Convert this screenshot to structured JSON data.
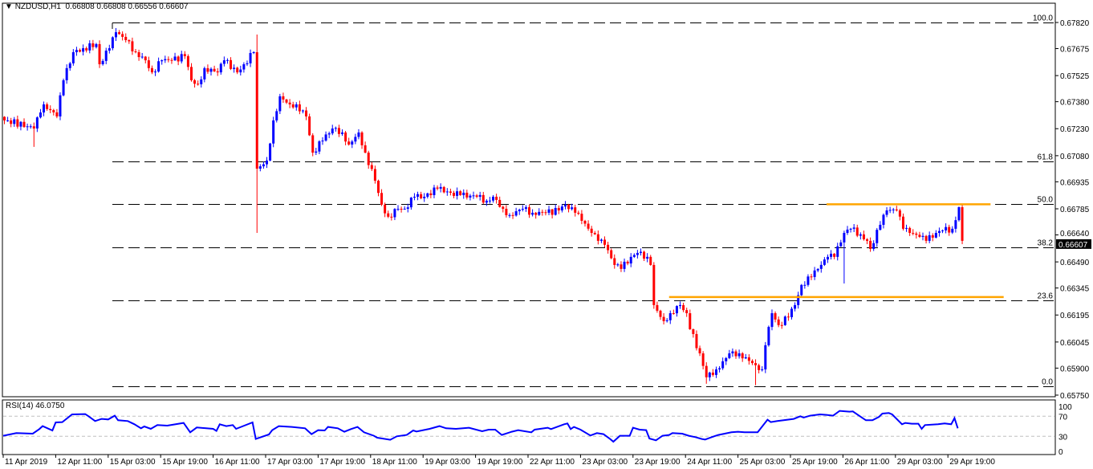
{
  "header": {
    "symbol": "NZDUSD,H1",
    "open": "0.66808",
    "high": "0.66808",
    "low": "0.66556",
    "close": "0.66607"
  },
  "rsi_label": {
    "name": "RSI(14)",
    "value": "46.0750"
  },
  "colors": {
    "bull": "#0000FF",
    "bear": "#FF0000",
    "rsi": "#0000FF",
    "fib": "#000000",
    "resistance": "#FFA500",
    "grid": "#C0C0C0"
  },
  "chart_data": {
    "type": "candlestick",
    "title": "NZDUSD,H1",
    "ylim": [
      0.6575,
      0.6782
    ],
    "y_ticks": [
      "0.67820",
      "0.67675",
      "0.67525",
      "0.67380",
      "0.67230",
      "0.67080",
      "0.66935",
      "0.66785",
      "0.66640",
      "0.66490",
      "0.66345",
      "0.66195",
      "0.66045",
      "0.65900",
      "0.65750"
    ],
    "current_price": "0.66607",
    "x_labels": [
      "11 Apr 2019",
      "12 Apr 11:00",
      "15 Apr 03:00",
      "15 Apr 19:00",
      "16 Apr 11:00",
      "17 Apr 03:00",
      "17 Apr 19:00",
      "18 Apr 11:00",
      "19 Apr 03:00",
      "19 Apr 19:00",
      "22 Apr 11:00",
      "23 Apr 03:00",
      "23 Apr 19:00",
      "24 Apr 11:00",
      "25 Apr 03:00",
      "25 Apr 19:00",
      "26 Apr 11:00",
      "29 Apr 03:00",
      "29 Apr 19:00"
    ],
    "bars_per_label": 16,
    "total_bars": 293,
    "close_keypoints": [
      [
        1,
        0.67276
      ],
      [
        9,
        0.67231
      ],
      [
        11,
        0.6732
      ],
      [
        12,
        0.67365
      ],
      [
        16,
        0.67298
      ],
      [
        18,
        0.67499
      ],
      [
        21,
        0.67655
      ],
      [
        24,
        0.67677
      ],
      [
        28,
        0.677
      ],
      [
        29,
        0.67588
      ],
      [
        32,
        0.67677
      ],
      [
        34,
        0.67766
      ],
      [
        37,
        0.67722
      ],
      [
        40,
        0.67655
      ],
      [
        43,
        0.6761
      ],
      [
        45,
        0.67543
      ],
      [
        48,
        0.6761
      ],
      [
        51,
        0.6761
      ],
      [
        55,
        0.67633
      ],
      [
        57,
        0.67499
      ],
      [
        59,
        0.67477
      ],
      [
        61,
        0.67566
      ],
      [
        65,
        0.67543
      ],
      [
        67,
        0.6761
      ],
      [
        71,
        0.67543
      ],
      [
        73,
        0.67588
      ],
      [
        76,
        0.67655
      ],
      [
        77,
        0.67008
      ],
      [
        80,
        0.67053
      ],
      [
        82,
        0.67276
      ],
      [
        84,
        0.6741
      ],
      [
        87,
        0.67365
      ],
      [
        89,
        0.67365
      ],
      [
        92,
        0.67298
      ],
      [
        94,
        0.67097
      ],
      [
        97,
        0.67164
      ],
      [
        100,
        0.67231
      ],
      [
        103,
        0.67209
      ],
      [
        105,
        0.67142
      ],
      [
        108,
        0.67209
      ],
      [
        110,
        0.67097
      ],
      [
        113,
        0.66941
      ],
      [
        115,
        0.66808
      ],
      [
        117,
        0.66741
      ],
      [
        120,
        0.66785
      ],
      [
        122,
        0.66785
      ],
      [
        125,
        0.66852
      ],
      [
        128,
        0.66852
      ],
      [
        132,
        0.66897
      ],
      [
        136,
        0.66874
      ],
      [
        139,
        0.66861
      ],
      [
        144,
        0.66852
      ],
      [
        147,
        0.6683
      ],
      [
        149,
        0.66852
      ],
      [
        152,
        0.66785
      ],
      [
        154,
        0.6675
      ],
      [
        158,
        0.66785
      ],
      [
        161,
        0.66763
      ],
      [
        165,
        0.66763
      ],
      [
        169,
        0.66776
      ],
      [
        171,
        0.66808
      ],
      [
        174,
        0.66763
      ],
      [
        176,
        0.66718
      ],
      [
        179,
        0.66651
      ],
      [
        181,
        0.66607
      ],
      [
        183,
        0.66585
      ],
      [
        186,
        0.66473
      ],
      [
        188,
        0.66451
      ],
      [
        191,
        0.66518
      ],
      [
        193,
        0.6654
      ],
      [
        196,
        0.66518
      ],
      [
        197,
        0.66473
      ],
      [
        198,
        0.6625
      ],
      [
        201,
        0.66161
      ],
      [
        203,
        0.66205
      ],
      [
        206,
        0.6625
      ],
      [
        208,
        0.66205
      ],
      [
        209,
        0.66116
      ],
      [
        212,
        0.65982
      ],
      [
        214,
        0.65849
      ],
      [
        217,
        0.65893
      ],
      [
        219,
        0.65938
      ],
      [
        221,
        0.65982
      ],
      [
        224,
        0.65982
      ],
      [
        226,
        0.6596
      ],
      [
        229,
        0.65916
      ],
      [
        231,
        0.65893
      ],
      [
        232,
        0.66027
      ],
      [
        234,
        0.66205
      ],
      [
        236,
        0.66139
      ],
      [
        239,
        0.66183
      ],
      [
        241,
        0.6625
      ],
      [
        243,
        0.66362
      ],
      [
        246,
        0.66406
      ],
      [
        248,
        0.66451
      ],
      [
        251,
        0.66518
      ],
      [
        253,
        0.66518
      ],
      [
        256,
        0.66651
      ],
      [
        258,
        0.66674
      ],
      [
        261,
        0.66643
      ],
      [
        263,
        0.66607
      ],
      [
        264,
        0.66562
      ],
      [
        267,
        0.66696
      ],
      [
        269,
        0.66776
      ],
      [
        272,
        0.66776
      ],
      [
        274,
        0.66674
      ],
      [
        276,
        0.66651
      ],
      [
        279,
        0.66629
      ],
      [
        281,
        0.66607
      ],
      [
        284,
        0.66651
      ],
      [
        286,
        0.66665
      ],
      [
        289,
        0.66674
      ],
      [
        291,
        0.66794
      ],
      [
        292,
        0.66607
      ]
    ],
    "wick_extremes": [
      [
        9,
        null,
        0.67129
      ],
      [
        34,
        0.67789,
        null
      ],
      [
        77,
        0.67753,
        0.66651
      ],
      [
        214,
        null,
        0.65813
      ],
      [
        229,
        null,
        0.65805
      ],
      [
        256,
        null,
        0.6637
      ]
    ],
    "fibonacci": {
      "high": 0.6782,
      "low": 0.658,
      "levels": [
        {
          "label": "100.0",
          "value": 1.0
        },
        {
          "label": "61.8",
          "value": 0.618
        },
        {
          "label": "50.0",
          "value": 0.5
        },
        {
          "label": "38.2",
          "value": 0.382
        },
        {
          "label": "23.6",
          "value": 0.236
        },
        {
          "label": "0.0",
          "value": 0.0
        }
      ]
    },
    "resistance_lines": [
      {
        "price": 0.6681,
        "from_bar": 251,
        "to_bar": 301
      },
      {
        "price": 0.66295,
        "from_bar": 203,
        "to_bar": 305
      }
    ],
    "rsi": {
      "period": 14,
      "ylim": [
        0,
        100
      ],
      "levels": [
        70,
        30
      ],
      "ticks": [
        "100",
        "70",
        "30",
        "0"
      ],
      "points": [
        [
          0,
          31.1
        ],
        [
          4,
          36.4
        ],
        [
          9,
          35.3
        ],
        [
          11,
          44.4
        ],
        [
          12,
          50.3
        ],
        [
          15,
          41.7
        ],
        [
          16,
          57.7
        ],
        [
          18,
          58.3
        ],
        [
          21,
          73.7
        ],
        [
          25,
          74.3
        ],
        [
          26,
          70
        ],
        [
          28,
          60.4
        ],
        [
          30,
          64.7
        ],
        [
          32,
          63.6
        ],
        [
          34,
          71.1
        ],
        [
          35,
          62
        ],
        [
          38,
          60.4
        ],
        [
          40,
          54
        ],
        [
          42,
          46
        ],
        [
          43,
          49.7
        ],
        [
          45,
          44.9
        ],
        [
          47,
          52.4
        ],
        [
          50,
          51.3
        ],
        [
          55,
          56.7
        ],
        [
          57,
          38
        ],
        [
          59,
          47.6
        ],
        [
          64,
          44.9
        ],
        [
          65,
          40.7
        ],
        [
          66,
          54
        ],
        [
          68,
          50.3
        ],
        [
          70,
          52.4
        ],
        [
          71,
          44.9
        ],
        [
          76,
          57.7
        ],
        [
          77,
          24.7
        ],
        [
          81,
          33.7
        ],
        [
          82,
          42.3
        ],
        [
          84,
          50.3
        ],
        [
          88,
          48.7
        ],
        [
          92,
          46
        ],
        [
          94,
          34.3
        ],
        [
          96,
          42.3
        ],
        [
          98,
          41.7
        ],
        [
          99,
          48.7
        ],
        [
          102,
          46
        ],
        [
          104,
          39.1
        ],
        [
          106,
          44.4
        ],
        [
          108,
          48.7
        ],
        [
          110,
          38
        ],
        [
          113,
          31.1
        ],
        [
          114,
          27.3
        ],
        [
          118,
          23.1
        ],
        [
          120,
          30
        ],
        [
          123,
          32.7
        ],
        [
          125,
          41.7
        ],
        [
          126,
          39.6
        ],
        [
          130,
          44.9
        ],
        [
          133,
          50.3
        ],
        [
          135,
          46
        ],
        [
          138,
          44.9
        ],
        [
          142,
          47.1
        ],
        [
          146,
          40.1
        ],
        [
          148,
          43.3
        ],
        [
          150,
          43.3
        ],
        [
          152,
          32.7
        ],
        [
          155,
          39.1
        ],
        [
          157,
          42.3
        ],
        [
          161,
          38
        ],
        [
          162,
          43.3
        ],
        [
          166,
          47.1
        ],
        [
          167,
          44.4
        ],
        [
          171,
          54
        ],
        [
          172,
          55.6
        ],
        [
          173,
          44.4
        ],
        [
          174,
          48.7
        ],
        [
          176,
          43.3
        ],
        [
          179,
          31.6
        ],
        [
          181,
          36.4
        ],
        [
          183,
          34.3
        ],
        [
          185,
          24.7
        ],
        [
          186,
          19.3
        ],
        [
          188,
          31.1
        ],
        [
          191,
          31.1
        ],
        [
          192,
          47.1
        ],
        [
          194,
          43.3
        ],
        [
          196,
          42.3
        ],
        [
          197,
          25.7
        ],
        [
          199,
          22
        ],
        [
          201,
          31.1
        ],
        [
          203,
          32.7
        ],
        [
          204,
          36.4
        ],
        [
          207,
          35.3
        ],
        [
          209,
          31.1
        ],
        [
          211,
          28.4
        ],
        [
          213,
          24.7
        ],
        [
          214,
          23.6
        ],
        [
          216,
          28.4
        ],
        [
          218,
          32.7
        ],
        [
          222,
          38
        ],
        [
          224,
          39.1
        ],
        [
          226,
          38
        ],
        [
          230,
          38
        ],
        [
          233,
          63.1
        ],
        [
          234,
          58.3
        ],
        [
          236,
          60.4
        ],
        [
          241,
          64.7
        ],
        [
          243,
          70
        ],
        [
          244,
          67.3
        ],
        [
          246,
          71.1
        ],
        [
          249,
          73.7
        ],
        [
          251,
          72.7
        ],
        [
          253,
          71.1
        ],
        [
          255,
          80.7
        ],
        [
          258,
          79.1
        ],
        [
          259,
          79.6
        ],
        [
          262,
          66.3
        ],
        [
          263,
          62
        ],
        [
          265,
          62
        ],
        [
          267,
          68.9
        ],
        [
          268,
          75.3
        ],
        [
          270,
          76.4
        ],
        [
          271,
          73.7
        ],
        [
          274,
          54
        ],
        [
          275,
          56.7
        ],
        [
          277,
          55.1
        ],
        [
          279,
          55.1
        ],
        [
          280,
          44.9
        ],
        [
          281,
          52.4
        ],
        [
          285,
          54
        ],
        [
          287,
          55.6
        ],
        [
          289,
          54
        ],
        [
          290,
          66.3
        ],
        [
          291,
          46
        ]
      ]
    }
  }
}
